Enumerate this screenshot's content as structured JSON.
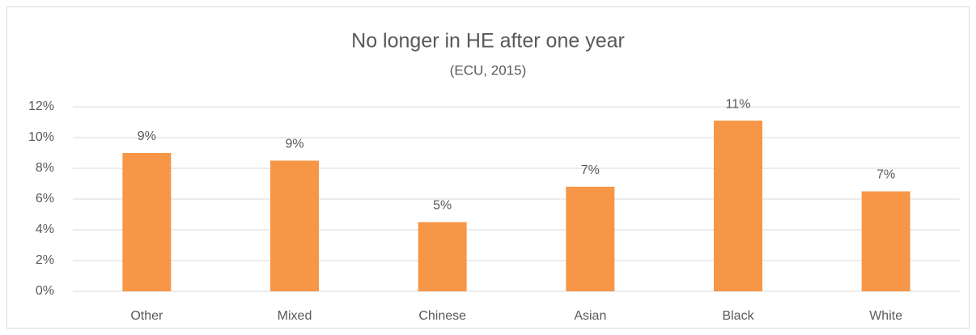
{
  "chart_data": {
    "type": "bar",
    "title": "No longer in HE after one year",
    "subtitle": "(ECU, 2015)",
    "categories": [
      "Other",
      "Mixed",
      "Chinese",
      "Asian",
      "Black",
      "White"
    ],
    "values": [
      9.0,
      8.5,
      4.5,
      6.8,
      11.1,
      6.5
    ],
    "value_labels": [
      "9%",
      "9%",
      "5%",
      "7%",
      "11%",
      "7%"
    ],
    "color": "#f79646",
    "ylim": [
      0,
      12
    ],
    "yticks": [
      {
        "value": 0,
        "label": "0%"
      },
      {
        "value": 2,
        "label": "2%"
      },
      {
        "value": 4,
        "label": "4%"
      },
      {
        "value": 6,
        "label": "6%"
      },
      {
        "value": 8,
        "label": "8%"
      },
      {
        "value": 10,
        "label": "10%"
      },
      {
        "value": 12,
        "label": "12%"
      }
    ],
    "grid": true
  }
}
